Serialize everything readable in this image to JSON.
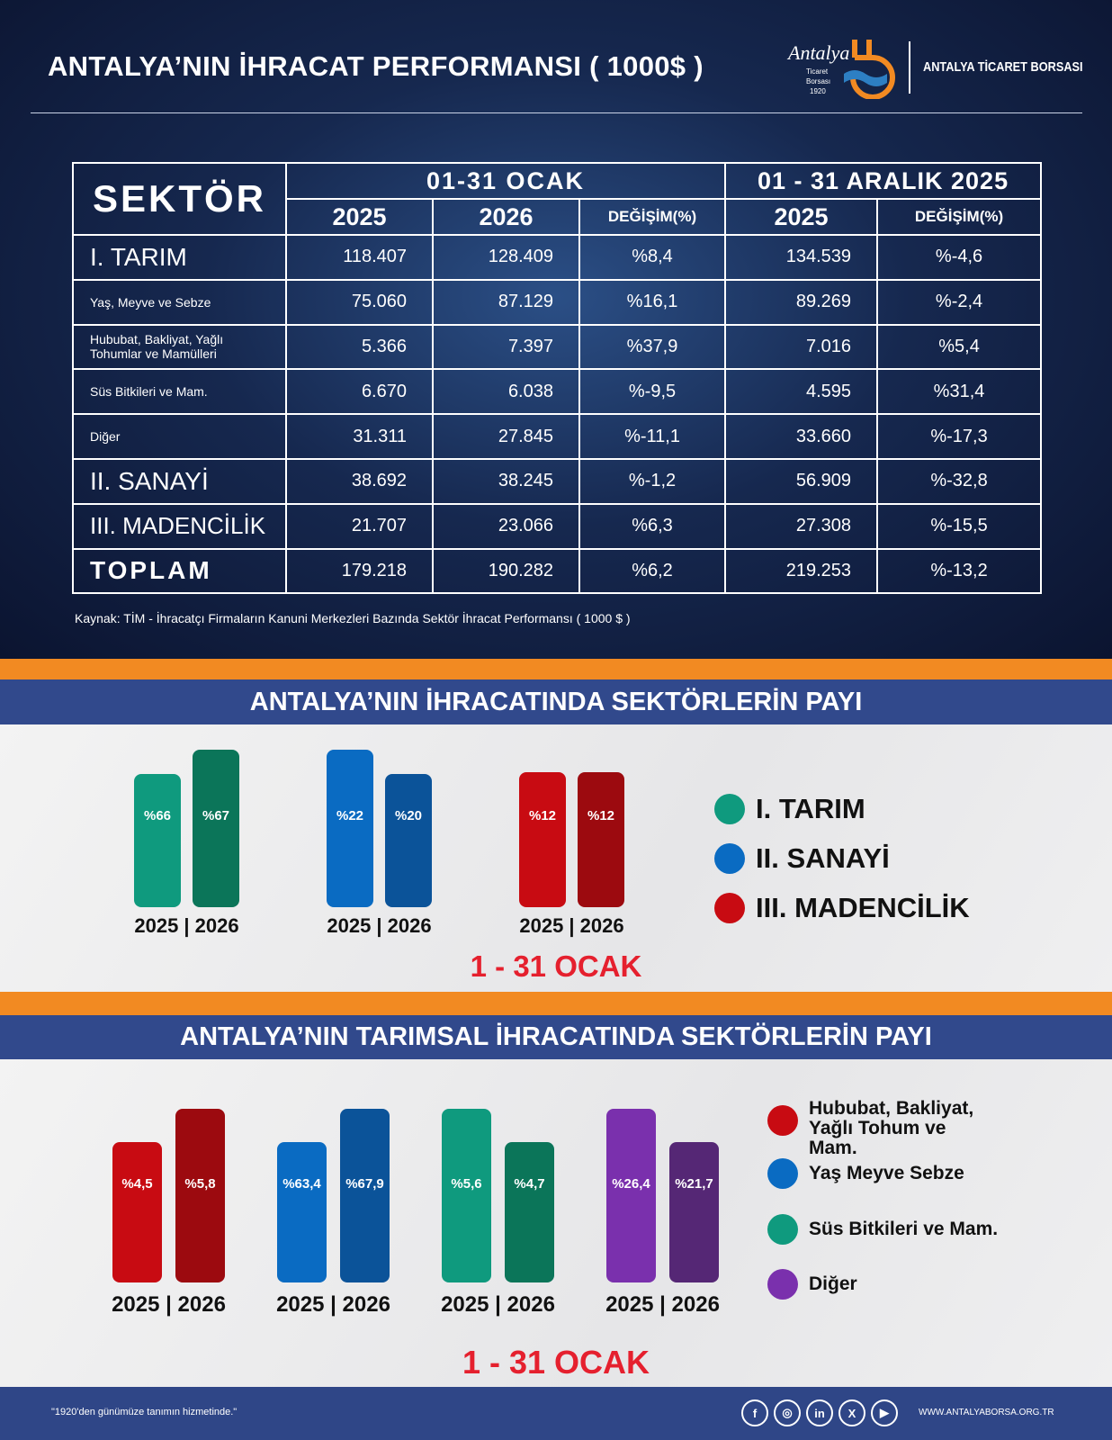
{
  "header": {
    "title": "ANTALYA’NIN İHRACAT PERFORMANSI ( 1000$ )",
    "logo_text": "Antalya Ticaret Borsası 1920",
    "brand": "ANTALYA TİCARET BORSASI"
  },
  "table": {
    "sector_header": "SEKTÖR",
    "period1": "01-31 OCAK",
    "period2": "01 - 31 ARALIK 2025",
    "sub": [
      "2025",
      "2026",
      "DEĞİŞİM(%)",
      "2025",
      "DEĞİŞİM(%)"
    ],
    "rows": [
      {
        "name": "I. TARIM",
        "v": [
          "118.407",
          "128.409",
          "%8,4",
          "134.539",
          "%-4,6"
        ]
      },
      {
        "name": "Yaş, Meyve ve Sebze",
        "v": [
          "75.060",
          "87.129",
          "%16,1",
          "89.269",
          "%-2,4"
        ]
      },
      {
        "name": "Hububat, Bakliyat, Yağlı Tohumlar ve Mamülleri",
        "v": [
          "5.366",
          "7.397",
          "%37,9",
          "7.016",
          "%5,4"
        ]
      },
      {
        "name": "Süs Bitkileri ve Mam.",
        "v": [
          "6.670",
          "6.038",
          "%-9,5",
          "4.595",
          "%31,4"
        ]
      },
      {
        "name": "Diğer",
        "v": [
          "31.311",
          "27.845",
          "%-11,1",
          "33.660",
          "%-17,3"
        ]
      },
      {
        "name": "II. SANAYİ",
        "v": [
          "38.692",
          "38.245",
          "%-1,2",
          "56.909",
          "%-32,8"
        ]
      },
      {
        "name": "III. MADENCİLİK",
        "v": [
          "21.707",
          "23.066",
          "%6,3",
          "27.308",
          "%-15,5"
        ]
      },
      {
        "name": "TOPLAM",
        "v": [
          "179.218",
          "190.282",
          "%6,2",
          "219.253",
          "%-13,2"
        ]
      }
    ],
    "source": "Kaynak: TİM - İhracatçı Firmaların Kanuni Merkezleri Bazında Sektör İhracat Performansı ( 1000 $ )"
  },
  "chart_data": [
    {
      "type": "bar",
      "title": "ANTALYA’NIN İHRACATINDA SEKTÖRLERİN PAYI",
      "subtitle": "1 - 31 OCAK",
      "categories": [
        "2025",
        "2026"
      ],
      "category_label": "2025 | 2026",
      "series": [
        {
          "name": "I. TARIM",
          "color": "#0f9a7e",
          "color2": "#0b7559",
          "values": [
            66,
            67
          ],
          "labels": [
            "%66",
            "%67"
          ]
        },
        {
          "name": "II. SANAYİ",
          "color": "#0a6bc2",
          "color2": "#0b5399",
          "values": [
            22,
            20
          ],
          "labels": [
            "%22",
            "%20"
          ]
        },
        {
          "name": "III. MADENCİLİK",
          "color": "#c80b12",
          "color2": "#9c0a0f",
          "values": [
            12,
            12
          ],
          "labels": [
            "%12",
            "%12"
          ]
        }
      ]
    },
    {
      "type": "bar",
      "title": "ANTALYA’NIN TARIMSAL İHRACATINDA SEKTÖRLERİN PAYI",
      "subtitle": "1 - 31 OCAK",
      "categories": [
        "2025",
        "2026"
      ],
      "category_label": "2025 | 2026",
      "series": [
        {
          "name": "Hububat, Bakliyat, Yağlı Tohum ve Mam.",
          "color": "#c80b12",
          "color2": "#9c0a0f",
          "values": [
            4.5,
            5.8
          ],
          "labels": [
            "%4,5",
            "%5,8"
          ]
        },
        {
          "name": "Yaş Meyve Sebze",
          "color": "#0a6bc2",
          "color2": "#0b5399",
          "values": [
            63.4,
            67.9
          ],
          "labels": [
            "%63,4",
            "%67,9"
          ]
        },
        {
          "name": "Süs Bitkileri ve Mam.",
          "color": "#0f9a7e",
          "color2": "#0b7559",
          "values": [
            5.6,
            4.7
          ],
          "labels": [
            "%5,6",
            "%4,7"
          ]
        },
        {
          "name": "Diğer",
          "color": "#7a30ad",
          "color2": "#552775",
          "values": [
            26.4,
            21.7
          ],
          "labels": [
            "%26,4",
            "%21,7"
          ]
        }
      ]
    }
  ],
  "footer": {
    "slogan": "\"1920'den günümüze tanımın hizmetinde.\"",
    "social": [
      "facebook-icon",
      "instagram-icon",
      "linkedin-icon",
      "x-icon",
      "youtube-icon"
    ],
    "website": "WWW.ANTALYABORSA.ORG.TR"
  }
}
